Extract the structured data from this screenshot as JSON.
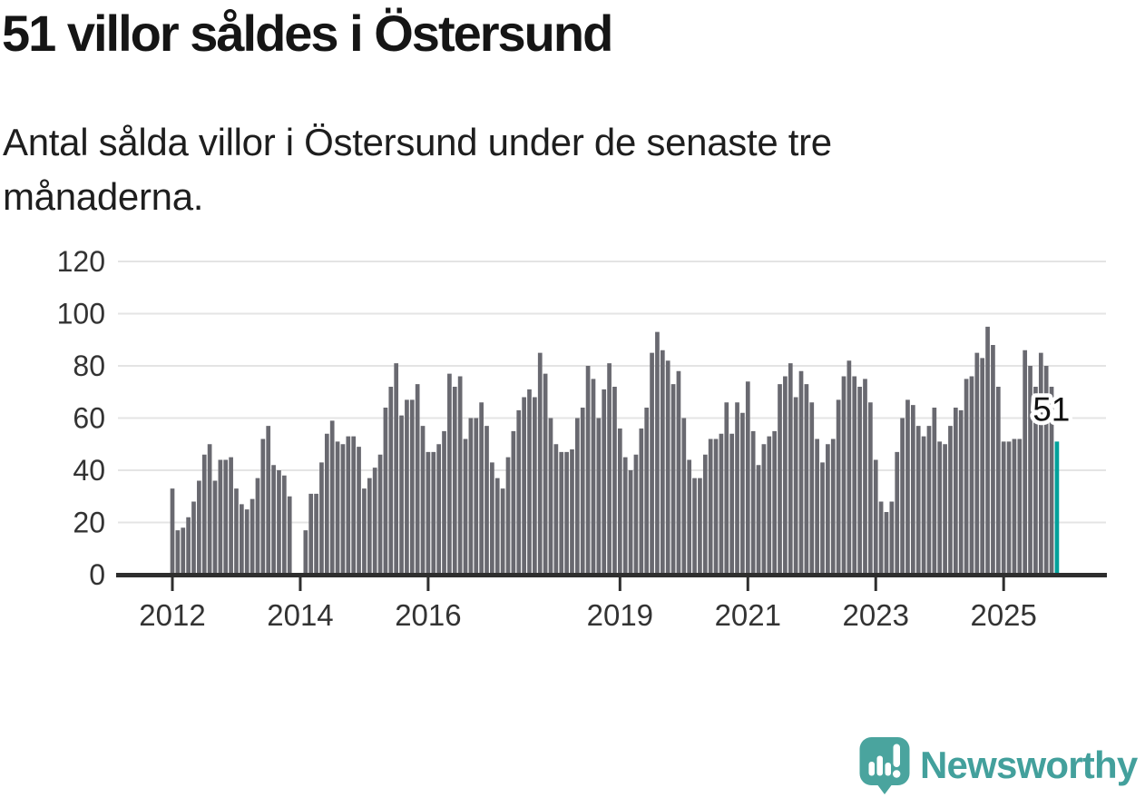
{
  "header": {
    "title": "51 villor såldes i Östersund",
    "subtitle_line1": "Antal sålda villor i Östersund under de senaste tre",
    "subtitle_line2": "månaderna."
  },
  "footer": {
    "brand": "Newsworthy",
    "logo_icon": "newsworthy-speech-bubble-bar-chart-icon"
  },
  "colors": {
    "bar": "#696970",
    "highlight": "#00A09A",
    "axis": "#2e2e2e",
    "grid": "#e4e4e4",
    "tick_label": "#333333",
    "annotation_text": "#111111",
    "annotation_halo": "#ffffff",
    "brand_teal": "#43A09C",
    "icon_teal": "#4AA49E"
  },
  "chart_data": {
    "type": "bar",
    "title": "51 villor såldes i Östersund",
    "subtitle": "Antal sålda villor i Östersund under de senaste tre månaderna.",
    "x_unit": "month",
    "x_start_year": 2012,
    "ylim": [
      0,
      120
    ],
    "yticks": [
      0,
      20,
      40,
      60,
      80,
      100,
      120
    ],
    "grid": true,
    "legend_position": "none",
    "values": [
      33,
      17,
      18,
      22,
      28,
      36,
      46,
      50,
      36,
      44,
      44,
      45,
      33,
      27,
      25,
      29,
      37,
      52,
      57,
      42,
      40,
      38,
      30,
      null,
      null,
      17,
      31,
      31,
      43,
      54,
      59,
      51,
      50,
      53,
      53,
      49,
      33,
      37,
      41,
      46,
      64,
      72,
      81,
      61,
      67,
      67,
      73,
      57,
      47,
      47,
      50,
      55,
      77,
      72,
      76,
      52,
      60,
      60,
      66,
      57,
      43,
      37,
      33,
      45,
      55,
      63,
      68,
      71,
      68,
      85,
      77,
      60,
      50,
      47,
      47,
      48,
      60,
      64,
      80,
      75,
      60,
      71,
      81,
      72,
      56,
      45,
      40,
      46,
      56,
      64,
      85,
      93,
      86,
      82,
      73,
      78,
      60,
      44,
      37,
      37,
      46,
      52,
      52,
      54,
      66,
      54,
      66,
      62,
      74,
      55,
      42,
      50,
      53,
      55,
      73,
      76,
      81,
      68,
      78,
      73,
      66,
      52,
      43,
      50,
      52,
      67,
      76,
      82,
      76,
      72,
      75,
      66,
      44,
      28,
      24,
      28,
      47,
      60,
      67,
      65,
      57,
      53,
      57,
      64,
      51,
      50,
      57,
      64,
      63,
      75,
      76,
      85,
      83,
      95,
      88,
      72,
      51,
      51,
      52,
      52,
      86,
      80,
      72,
      85,
      80,
      72,
      51
    ],
    "highlight_index": 166,
    "highlight_value": 51,
    "highlight_value_label": "51",
    "year_ticks": [
      {
        "label": "2012",
        "index": 0
      },
      {
        "label": "2014",
        "index": 24
      },
      {
        "label": "2016",
        "index": 48
      },
      {
        "label": "2019",
        "index": 84
      },
      {
        "label": "2021",
        "index": 108
      },
      {
        "label": "2023",
        "index": 132
      },
      {
        "label": "2025",
        "index": 156
      }
    ]
  }
}
